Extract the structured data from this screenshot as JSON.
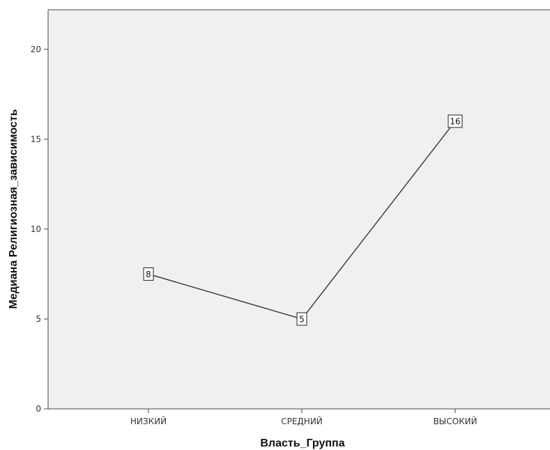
{
  "chart_data": {
    "type": "line",
    "title": "",
    "xlabel": "Власть_Группа",
    "ylabel": "Медиана Религиозная_зависимость",
    "categories": [
      "НИЗКИЙ",
      "СРЕДНИЙ",
      "ВЫСОКИЙ"
    ],
    "series": [
      {
        "values": [
          7.5,
          5,
          16
        ],
        "labels": [
          "8",
          "5",
          "16"
        ]
      }
    ],
    "ylim": [
      0,
      22.2
    ],
    "yticks": [
      0,
      5,
      10,
      15,
      20
    ],
    "grid": false,
    "legend": "none",
    "colors": {
      "plot_background": "#f0f0f0",
      "line": "#333333",
      "axis": "#444444"
    }
  }
}
